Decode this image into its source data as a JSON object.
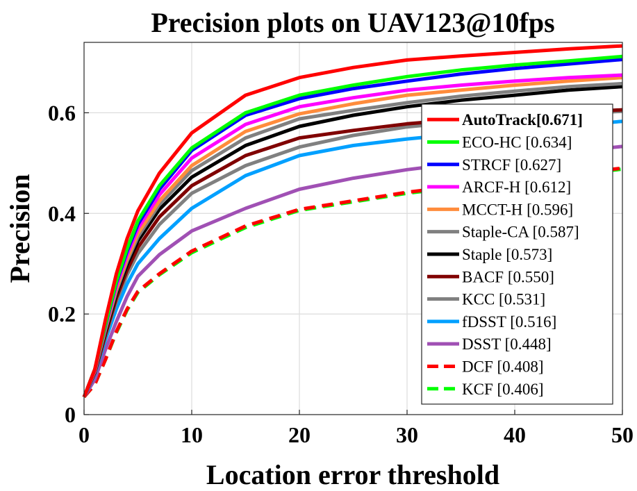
{
  "chart_data": {
    "type": "line",
    "title": "Precision plots on UAV123@10fps",
    "xlabel": "Location error threshold",
    "ylabel": "Precision",
    "xlim": [
      0,
      50
    ],
    "ylim": [
      0,
      0.74
    ],
    "xticks": [
      0,
      10,
      20,
      30,
      40,
      50
    ],
    "yticks": [
      0,
      0.2,
      0.4,
      0.6
    ],
    "ytick_labels": [
      "0",
      "0.2",
      "0.4",
      "0.6"
    ],
    "grid": true,
    "legend_position": "right",
    "x": [
      0,
      1,
      2,
      3,
      4,
      5,
      7,
      10,
      15,
      20,
      25,
      30,
      35,
      40,
      45,
      50
    ],
    "series": [
      {
        "name": "AutoTrack[0.671]",
        "color": "#ff0000",
        "dash": "solid",
        "bold": true,
        "values": [
          0.035,
          0.09,
          0.19,
          0.28,
          0.35,
          0.405,
          0.48,
          0.56,
          0.635,
          0.67,
          0.69,
          0.705,
          0.713,
          0.72,
          0.727,
          0.733
        ]
      },
      {
        "name": "ECO-HC [0.634]",
        "color": "#00ff00",
        "dash": "solid",
        "bold": false,
        "values": [
          0.035,
          0.09,
          0.18,
          0.265,
          0.33,
          0.385,
          0.455,
          0.53,
          0.6,
          0.635,
          0.655,
          0.672,
          0.685,
          0.695,
          0.703,
          0.712
        ]
      },
      {
        "name": "STRCF [0.627]",
        "color": "#0000ff",
        "dash": "solid",
        "bold": false,
        "values": [
          0.035,
          0.09,
          0.178,
          0.262,
          0.325,
          0.378,
          0.448,
          0.525,
          0.595,
          0.628,
          0.648,
          0.663,
          0.677,
          0.688,
          0.697,
          0.706
        ]
      },
      {
        "name": "ARCF-H [0.612]",
        "color": "#ff00ff",
        "dash": "solid",
        "bold": false,
        "values": [
          0.035,
          0.088,
          0.175,
          0.256,
          0.318,
          0.37,
          0.437,
          0.51,
          0.577,
          0.612,
          0.63,
          0.645,
          0.655,
          0.663,
          0.67,
          0.675
        ]
      },
      {
        "name": "MCCT-H [0.596]",
        "color": "#ff8c3c",
        "dash": "solid",
        "bold": false,
        "values": [
          0.035,
          0.087,
          0.172,
          0.25,
          0.31,
          0.36,
          0.425,
          0.495,
          0.563,
          0.598,
          0.618,
          0.635,
          0.645,
          0.655,
          0.663,
          0.67
        ]
      },
      {
        "name": "Staple-CA [0.587]",
        "color": "#808080",
        "dash": "solid",
        "bold": false,
        "values": [
          0.035,
          0.086,
          0.17,
          0.245,
          0.305,
          0.353,
          0.418,
          0.485,
          0.55,
          0.588,
          0.605,
          0.62,
          0.633,
          0.643,
          0.652,
          0.658
        ]
      },
      {
        "name": "Staple [0.573]",
        "color": "#000000",
        "dash": "solid",
        "bold": false,
        "values": [
          0.035,
          0.085,
          0.166,
          0.24,
          0.298,
          0.345,
          0.408,
          0.472,
          0.535,
          0.573,
          0.595,
          0.612,
          0.625,
          0.635,
          0.645,
          0.652
        ]
      },
      {
        "name": "BACF [0.550]",
        "color": "#800000",
        "dash": "solid",
        "bold": false,
        "values": [
          0.035,
          0.083,
          0.16,
          0.232,
          0.287,
          0.332,
          0.393,
          0.455,
          0.515,
          0.55,
          0.565,
          0.578,
          0.587,
          0.594,
          0.6,
          0.606
        ]
      },
      {
        "name": "KCC [0.531]",
        "color": "#808080",
        "dash": "solid",
        "bold": false,
        "values": [
          0.035,
          0.082,
          0.157,
          0.225,
          0.278,
          0.32,
          0.378,
          0.44,
          0.495,
          0.532,
          0.555,
          0.572,
          0.582,
          0.59,
          0.597,
          0.603
        ]
      },
      {
        "name": "fDSST [0.516]",
        "color": "#00a0ff",
        "dash": "solid",
        "bold": false,
        "values": [
          0.035,
          0.08,
          0.15,
          0.21,
          0.26,
          0.3,
          0.35,
          0.41,
          0.475,
          0.515,
          0.535,
          0.548,
          0.558,
          0.567,
          0.574,
          0.583
        ]
      },
      {
        "name": "DSST [0.448]",
        "color": "#a050b4",
        "dash": "solid",
        "bold": false,
        "values": [
          0.035,
          0.07,
          0.13,
          0.185,
          0.235,
          0.275,
          0.318,
          0.365,
          0.41,
          0.448,
          0.47,
          0.487,
          0.5,
          0.512,
          0.523,
          0.533
        ]
      },
      {
        "name": "DCF [0.408]",
        "color": "#ff0000",
        "dash": "dashed",
        "bold": false,
        "values": [
          0.035,
          0.06,
          0.11,
          0.165,
          0.21,
          0.245,
          0.28,
          0.325,
          0.375,
          0.408,
          0.425,
          0.442,
          0.455,
          0.467,
          0.478,
          0.49
        ]
      },
      {
        "name": "KCF [0.406]",
        "color": "#00ff00",
        "dash": "dashed",
        "bold": false,
        "values": [
          0.035,
          0.06,
          0.11,
          0.163,
          0.208,
          0.243,
          0.278,
          0.322,
          0.372,
          0.406,
          0.423,
          0.44,
          0.453,
          0.465,
          0.476,
          0.488
        ]
      }
    ]
  }
}
